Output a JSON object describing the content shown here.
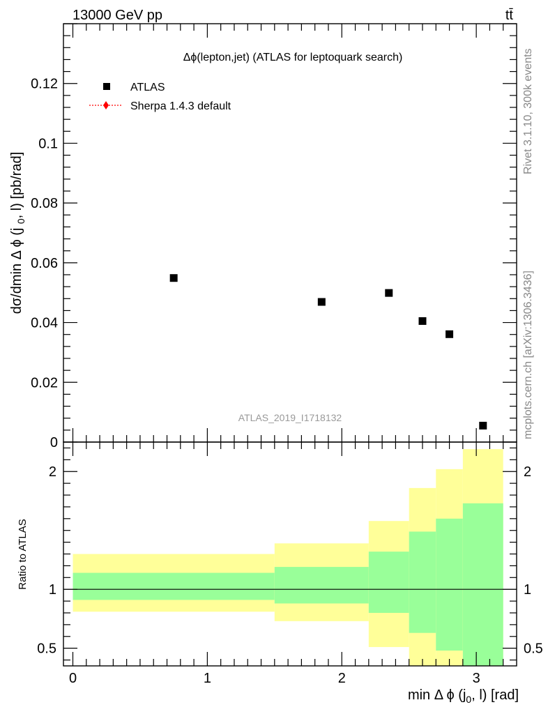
{
  "header": {
    "left": "13000 GeV pp",
    "right": "tt̄"
  },
  "watermark": "ATLAS_2019_I1718132",
  "side_texts": {
    "rivet": "Rivet 3.1.10,  300k events",
    "mcplots": "mcplots.cern.ch [arXiv:1306.3436]"
  },
  "colors": {
    "yellow_band": "#ffff99",
    "green_band": "#99ff99",
    "data": "#000000",
    "mc": "#ff0000"
  },
  "chart_data": [
    {
      "type": "scatter",
      "title": "Δϕ(lepton,jet) (ATLAS for leptoquark search)",
      "ylabel": "dσ/dmin Δ ϕ (j0, l) [pb/rad]",
      "xlim": [
        -0.07,
        3.3
      ],
      "ylim": [
        0,
        0.14
      ],
      "yticks": [
        0,
        0.02,
        0.04,
        0.06,
        0.08,
        0.1,
        0.12
      ],
      "ytick_labels": [
        "0",
        "0.02",
        "0.04",
        "0.06",
        "0.08",
        "0.1",
        "0.12"
      ],
      "legend": {
        "position": "top-left",
        "entries": [
          "ATLAS",
          "Sherpa 1.4.3 default"
        ]
      },
      "series": [
        {
          "name": "ATLAS",
          "points": [
            {
              "x": 0.75,
              "y": 0.0549
            },
            {
              "x": 1.85,
              "y": 0.0469
            },
            {
              "x": 2.35,
              "y": 0.0499
            },
            {
              "x": 2.6,
              "y": 0.0405
            },
            {
              "x": 2.8,
              "y": 0.0361
            },
            {
              "x": 3.05,
              "y": 0.0055
            }
          ]
        }
      ]
    },
    {
      "type": "area",
      "ylabel": "Ratio to ATLAS",
      "xlabel": "min Δ ϕ (j0, l) [rad]",
      "xlim": [
        -0.07,
        3.3
      ],
      "ylim": [
        0.35,
        2.25
      ],
      "xticks": [
        0,
        1,
        2,
        3
      ],
      "xtick_labels": [
        "0",
        "1",
        "2",
        "3"
      ],
      "yticks": [
        0.5,
        1,
        2
      ],
      "ytick_labels": [
        "0.5",
        "1",
        "2"
      ],
      "reference_line": 1,
      "bins": [
        {
          "x0": 0.0,
          "x1": 1.5,
          "green": [
            0.91,
            1.14
          ],
          "yellow": [
            0.81,
            1.3
          ]
        },
        {
          "x0": 1.5,
          "x1": 2.2,
          "green": [
            0.88,
            1.19
          ],
          "yellow": [
            0.73,
            1.39
          ]
        },
        {
          "x0": 2.2,
          "x1": 2.5,
          "green": [
            0.8,
            1.32
          ],
          "yellow": [
            0.51,
            1.58
          ]
        },
        {
          "x0": 2.5,
          "x1": 2.7,
          "green": [
            0.63,
            1.49
          ],
          "yellow": [
            0.35,
            1.86
          ]
        },
        {
          "x0": 2.7,
          "x1": 2.9,
          "green": [
            0.48,
            1.6
          ],
          "yellow": [
            0.35,
            2.02
          ]
        },
        {
          "x0": 2.9,
          "x1": 3.2,
          "green": [
            0.35,
            1.73
          ],
          "yellow": [
            0.35,
            2.19
          ]
        }
      ]
    }
  ]
}
